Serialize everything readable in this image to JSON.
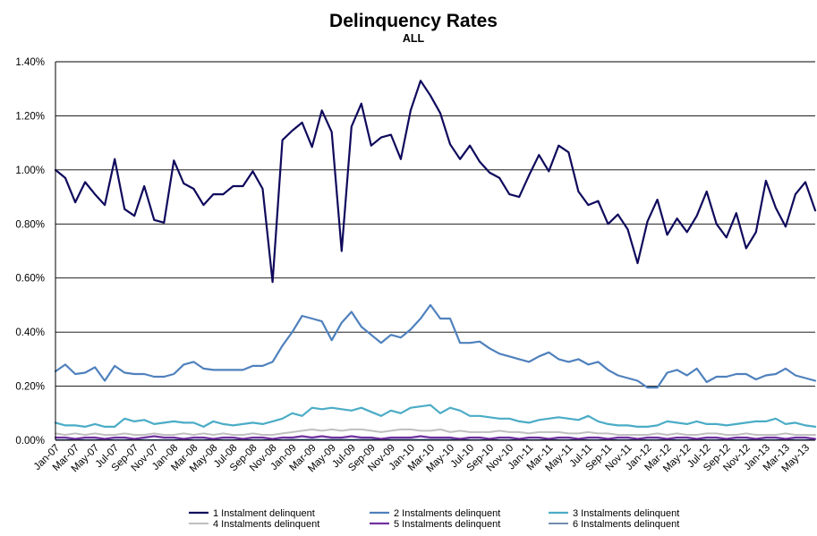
{
  "chart_data": {
    "type": "line",
    "title": "Delinquency  Rates",
    "subtitle": "ALL",
    "ylim": [
      0,
      0.014
    ],
    "y_ticks": [
      "0.00%",
      "0.20%",
      "0.40%",
      "0.60%",
      "0.80%",
      "1.00%",
      "1.20%",
      "1.40%"
    ],
    "y_tick_values": [
      0,
      0.002,
      0.004,
      0.006,
      0.008,
      0.01,
      0.012,
      0.014
    ],
    "grid": true,
    "legend_position": "bottom",
    "x": [
      "Jan-07",
      "Feb-07",
      "Mar-07",
      "Apr-07",
      "May-07",
      "Jun-07",
      "Jul-07",
      "Aug-07",
      "Sep-07",
      "Oct-07",
      "Nov-07",
      "Dec-07",
      "Jan-08",
      "Feb-08",
      "Mar-08",
      "Apr-08",
      "May-08",
      "Jun-08",
      "Jul-08",
      "Aug-08",
      "Sep-08",
      "Oct-08",
      "Nov-08",
      "Dec-08",
      "Jan-09",
      "Feb-09",
      "Mar-09",
      "Apr-09",
      "May-09",
      "Jun-09",
      "Jul-09",
      "Aug-09",
      "Sep-09",
      "Oct-09",
      "Nov-09",
      "Dec-09",
      "Jan-10",
      "Feb-10",
      "Mar-10",
      "Apr-10",
      "May-10",
      "Jun-10",
      "Jul-10",
      "Aug-10",
      "Sep-10",
      "Oct-10",
      "Nov-10",
      "Dec-10",
      "Jan-11",
      "Feb-11",
      "Mar-11",
      "Apr-11",
      "May-11",
      "Jun-11",
      "Jul-11",
      "Aug-11",
      "Sep-11",
      "Oct-11",
      "Nov-11",
      "Dec-11",
      "Jan-12",
      "Feb-12",
      "Mar-12",
      "Apr-12",
      "May-12",
      "Jun-12",
      "Jul-12",
      "Aug-12",
      "Sep-12",
      "Oct-12",
      "Nov-12",
      "Dec-12",
      "Jan-13",
      "Feb-13",
      "Mar-13",
      "Apr-13",
      "May-13",
      "Jun-13"
    ],
    "x_tick_labels": [
      "Jan-07",
      "Mar-07",
      "May-07",
      "Jul-07",
      "Sep-07",
      "Nov-07",
      "Jan-08",
      "Mar-08",
      "May-08",
      "Jul-08",
      "Sep-08",
      "Nov-08",
      "Jan-09",
      "Mar-09",
      "May-09",
      "Jul-09",
      "Sep-09",
      "Nov-09",
      "Jan-10",
      "Mar-10",
      "May-10",
      "Jul-10",
      "Sep-10",
      "Nov-10",
      "Jan-11",
      "Mar-11",
      "May-11",
      "Jul-11",
      "Sep-11",
      "Nov-11",
      "Jan-12",
      "Mar-12",
      "May-12",
      "Jul-12",
      "Sep-12",
      "Nov-12",
      "Jan-13",
      "Mar-13",
      "May-13"
    ],
    "series": [
      {
        "name": "1 Instalment delinquent",
        "color": "#0f0a5c",
        "width": 2.2,
        "values": [
          0.01,
          0.0097,
          0.0088,
          0.00955,
          0.0091,
          0.0087,
          0.0104,
          0.00855,
          0.0083,
          0.0094,
          0.00815,
          0.00805,
          0.01035,
          0.0095,
          0.0093,
          0.0087,
          0.0091,
          0.0091,
          0.0094,
          0.0094,
          0.00995,
          0.0093,
          0.00585,
          0.0111,
          0.01145,
          0.01175,
          0.01085,
          0.0122,
          0.0114,
          0.007,
          0.0116,
          0.01245,
          0.0109,
          0.0112,
          0.0113,
          0.0104,
          0.0122,
          0.0133,
          0.01275,
          0.0121,
          0.01095,
          0.0104,
          0.0109,
          0.0103,
          0.0099,
          0.0097,
          0.0091,
          0.009,
          0.0098,
          0.01055,
          0.00995,
          0.0109,
          0.01065,
          0.0092,
          0.0087,
          0.00885,
          0.008,
          0.00835,
          0.0078,
          0.00655,
          0.0081,
          0.0089,
          0.0076,
          0.0082,
          0.0077,
          0.0083,
          0.0092,
          0.008,
          0.0075,
          0.0084,
          0.0071,
          0.0077,
          0.0096,
          0.0086,
          0.0079,
          0.0091,
          0.00955,
          0.0085
        ]
      },
      {
        "name": "2 Instalments delinquent",
        "color": "#4f81bd",
        "width": 2.2,
        "values": [
          0.00255,
          0.0028,
          0.00245,
          0.0025,
          0.0027,
          0.0022,
          0.00275,
          0.0025,
          0.00245,
          0.00245,
          0.00235,
          0.00235,
          0.00245,
          0.0028,
          0.0029,
          0.00265,
          0.0026,
          0.0026,
          0.0026,
          0.0026,
          0.00275,
          0.00275,
          0.0029,
          0.0035,
          0.004,
          0.0046,
          0.0045,
          0.0044,
          0.0037,
          0.00435,
          0.00475,
          0.0042,
          0.0039,
          0.0036,
          0.0039,
          0.0038,
          0.0041,
          0.0045,
          0.005,
          0.0045,
          0.0045,
          0.0036,
          0.0036,
          0.00365,
          0.0034,
          0.0032,
          0.0031,
          0.003,
          0.0029,
          0.0031,
          0.00325,
          0.003,
          0.0029,
          0.003,
          0.0028,
          0.0029,
          0.0026,
          0.0024,
          0.0023,
          0.0022,
          0.00195,
          0.00195,
          0.0025,
          0.0026,
          0.0024,
          0.00265,
          0.00215,
          0.00235,
          0.00235,
          0.00245,
          0.00245,
          0.00225,
          0.0024,
          0.00245,
          0.00265,
          0.0024,
          0.0023,
          0.0022
        ]
      },
      {
        "name": "3 Instalments delinquent",
        "color": "#4bacc6",
        "width": 2.2,
        "values": [
          0.00065,
          0.00055,
          0.00055,
          0.0005,
          0.0006,
          0.0005,
          0.0005,
          0.0008,
          0.0007,
          0.00075,
          0.0006,
          0.00065,
          0.0007,
          0.00065,
          0.00065,
          0.0005,
          0.0007,
          0.0006,
          0.00055,
          0.0006,
          0.00065,
          0.0006,
          0.0007,
          0.0008,
          0.001,
          0.0009,
          0.0012,
          0.00115,
          0.0012,
          0.00115,
          0.0011,
          0.0012,
          0.00105,
          0.0009,
          0.0011,
          0.001,
          0.0012,
          0.00125,
          0.0013,
          0.001,
          0.0012,
          0.0011,
          0.0009,
          0.0009,
          0.00085,
          0.0008,
          0.0008,
          0.0007,
          0.00065,
          0.00075,
          0.0008,
          0.00085,
          0.0008,
          0.00075,
          0.0009,
          0.0007,
          0.0006,
          0.00055,
          0.00055,
          0.0005,
          0.0005,
          0.00055,
          0.0007,
          0.00065,
          0.0006,
          0.0007,
          0.0006,
          0.0006,
          0.00055,
          0.0006,
          0.00065,
          0.0007,
          0.0007,
          0.0008,
          0.0006,
          0.00065,
          0.00055,
          0.0005
        ]
      },
      {
        "name": "4 Instalments delinquent",
        "color": "#bfbfbf",
        "width": 2,
        "values": [
          0.00025,
          0.0002,
          0.00025,
          0.0002,
          0.00025,
          0.0002,
          0.0002,
          0.00025,
          0.0002,
          0.0002,
          0.00025,
          0.0002,
          0.0002,
          0.00025,
          0.0002,
          0.00025,
          0.0002,
          0.00025,
          0.0002,
          0.0002,
          0.00025,
          0.0002,
          0.0002,
          0.00025,
          0.0003,
          0.00035,
          0.0004,
          0.00035,
          0.0004,
          0.00035,
          0.0004,
          0.0004,
          0.00035,
          0.0003,
          0.00035,
          0.0004,
          0.0004,
          0.00035,
          0.00035,
          0.0004,
          0.0003,
          0.00035,
          0.0003,
          0.0003,
          0.0003,
          0.00035,
          0.0003,
          0.0003,
          0.00025,
          0.0003,
          0.0003,
          0.0003,
          0.00025,
          0.00025,
          0.0003,
          0.00025,
          0.00025,
          0.0002,
          0.0002,
          0.0002,
          0.0002,
          0.00025,
          0.0002,
          0.00025,
          0.0002,
          0.0002,
          0.00025,
          0.00025,
          0.0002,
          0.0002,
          0.00025,
          0.0002,
          0.0002,
          0.0002,
          0.00025,
          0.0002,
          0.0002,
          0.0002
        ]
      },
      {
        "name": "5 Instalments delinquent",
        "color": "#7030a0",
        "width": 2.2,
        "values": [
          0.0001,
          0.0001,
          5e-05,
          0.0001,
          0.0001,
          5e-05,
          0.0001,
          0.0001,
          5e-05,
          0.0001,
          0.00015,
          0.0001,
          0.0001,
          5e-05,
          0.0001,
          0.0001,
          5e-05,
          0.0001,
          0.0001,
          5e-05,
          0.0001,
          0.0001,
          5e-05,
          0.0001,
          0.0001,
          0.00015,
          0.0001,
          0.00015,
          0.0001,
          0.0001,
          0.00015,
          0.0001,
          0.0001,
          5e-05,
          0.0001,
          0.0001,
          0.0001,
          0.00015,
          0.0001,
          0.0001,
          0.0001,
          5e-05,
          0.0001,
          0.0001,
          5e-05,
          0.0001,
          0.0001,
          5e-05,
          0.0001,
          0.0001,
          5e-05,
          0.0001,
          0.0001,
          5e-05,
          0.0001,
          0.0001,
          5e-05,
          0.0001,
          0.0001,
          5e-05,
          0.0001,
          0.0001,
          5e-05,
          0.0001,
          0.0001,
          5e-05,
          0.0001,
          0.0001,
          5e-05,
          0.0001,
          0.0001,
          5e-05,
          0.0001,
          0.0001,
          5e-05,
          0.0001,
          0.0001,
          5e-05
        ]
      },
      {
        "name": "6 Instalments delinquent",
        "color": "#1f497d",
        "width": 1,
        "values": [
          2e-05,
          2e-05,
          2e-05,
          2e-05,
          2e-05,
          2e-05,
          2e-05,
          2e-05,
          2e-05,
          2e-05,
          2e-05,
          2e-05,
          2e-05,
          2e-05,
          2e-05,
          2e-05,
          2e-05,
          2e-05,
          2e-05,
          2e-05,
          2e-05,
          2e-05,
          2e-05,
          2e-05,
          3e-05,
          3e-05,
          3e-05,
          3e-05,
          3e-05,
          3e-05,
          3e-05,
          3e-05,
          3e-05,
          3e-05,
          3e-05,
          3e-05,
          3e-05,
          3e-05,
          3e-05,
          3e-05,
          3e-05,
          3e-05,
          2e-05,
          2e-05,
          2e-05,
          2e-05,
          2e-05,
          2e-05,
          2e-05,
          2e-05,
          2e-05,
          2e-05,
          2e-05,
          2e-05,
          2e-05,
          2e-05,
          2e-05,
          2e-05,
          2e-05,
          2e-05,
          2e-05,
          2e-05,
          2e-05,
          2e-05,
          2e-05,
          2e-05,
          2e-05,
          2e-05,
          2e-05,
          2e-05,
          2e-05,
          2e-05,
          2e-05,
          2e-05,
          2e-05,
          2e-05,
          2e-05,
          2e-05
        ]
      }
    ]
  }
}
